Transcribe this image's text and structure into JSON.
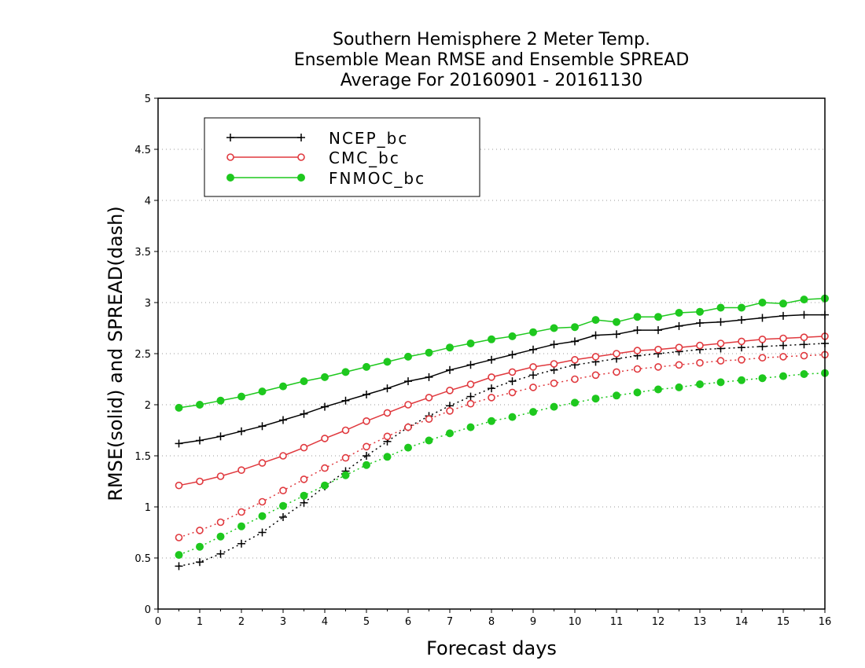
{
  "chart_data": {
    "type": "line",
    "title_lines": [
      "Southern Hemisphere 2 Meter Temp.",
      "Ensemble Mean RMSE and Ensemble SPREAD",
      "Average For 20160901 - 20161130"
    ],
    "xlabel": "Forecast days",
    "ylabel": "RMSE(solid) and SPREAD(dash)",
    "xlim": [
      0,
      16
    ],
    "ylim": [
      0,
      5
    ],
    "xticks": [
      "0",
      "1",
      "2",
      "3",
      "4",
      "5",
      "6",
      "7",
      "8",
      "9",
      "10",
      "11",
      "12",
      "13",
      "14",
      "15",
      "16"
    ],
    "yticks": [
      "0",
      "0.5",
      "1",
      "1.5",
      "2",
      "2.5",
      "3",
      "3.5",
      "4",
      "4.5",
      "5"
    ],
    "grid": "horizontal dotted",
    "legend_position": "top-left",
    "x": [
      0.5,
      1,
      1.5,
      2,
      2.5,
      3,
      3.5,
      4,
      4.5,
      5,
      5.5,
      6,
      6.5,
      7,
      7.5,
      8,
      8.5,
      9,
      9.5,
      10,
      10.5,
      11,
      11.5,
      12,
      12.5,
      13,
      13.5,
      14,
      14.5,
      15,
      15.5,
      16
    ],
    "series": [
      {
        "name": "NCEP_bc",
        "color": "#000000",
        "marker": "plus",
        "rmse": [
          1.62,
          1.65,
          1.69,
          1.74,
          1.79,
          1.85,
          1.91,
          1.98,
          2.04,
          2.1,
          2.16,
          2.23,
          2.27,
          2.34,
          2.39,
          2.44,
          2.49,
          2.54,
          2.59,
          2.62,
          2.68,
          2.69,
          2.73,
          2.73,
          2.77,
          2.8,
          2.81,
          2.83,
          2.85,
          2.87,
          2.88,
          2.88
        ],
        "spread": [
          0.42,
          0.46,
          0.54,
          0.64,
          0.75,
          0.9,
          1.04,
          1.2,
          1.35,
          1.5,
          1.64,
          1.78,
          1.89,
          1.99,
          2.08,
          2.16,
          2.23,
          2.29,
          2.34,
          2.39,
          2.42,
          2.45,
          2.48,
          2.5,
          2.52,
          2.54,
          2.55,
          2.56,
          2.57,
          2.58,
          2.59,
          2.6
        ]
      },
      {
        "name": "CMC_bc",
        "color": "#e0393e",
        "marker": "open-circle",
        "rmse": [
          1.21,
          1.25,
          1.3,
          1.36,
          1.43,
          1.5,
          1.58,
          1.67,
          1.75,
          1.84,
          1.92,
          2.0,
          2.07,
          2.14,
          2.2,
          2.27,
          2.32,
          2.37,
          2.4,
          2.44,
          2.47,
          2.5,
          2.53,
          2.54,
          2.56,
          2.58,
          2.6,
          2.62,
          2.64,
          2.65,
          2.66,
          2.67
        ],
        "spread": [
          0.7,
          0.77,
          0.85,
          0.95,
          1.05,
          1.16,
          1.27,
          1.38,
          1.48,
          1.59,
          1.69,
          1.78,
          1.86,
          1.94,
          2.01,
          2.07,
          2.12,
          2.17,
          2.21,
          2.25,
          2.29,
          2.32,
          2.35,
          2.37,
          2.39,
          2.41,
          2.43,
          2.44,
          2.46,
          2.47,
          2.48,
          2.49
        ]
      },
      {
        "name": "FNMOC_bc",
        "color": "#1ec81e",
        "marker": "filled-circle",
        "rmse": [
          1.97,
          2.0,
          2.04,
          2.08,
          2.13,
          2.18,
          2.23,
          2.27,
          2.32,
          2.37,
          2.42,
          2.47,
          2.51,
          2.56,
          2.6,
          2.64,
          2.67,
          2.71,
          2.75,
          2.76,
          2.83,
          2.81,
          2.86,
          2.86,
          2.9,
          2.91,
          2.95,
          2.95,
          3.0,
          2.99,
          3.03,
          3.04
        ],
        "spread": [
          0.53,
          0.61,
          0.71,
          0.81,
          0.91,
          1.01,
          1.11,
          1.21,
          1.31,
          1.41,
          1.49,
          1.58,
          1.65,
          1.72,
          1.78,
          1.84,
          1.88,
          1.93,
          1.98,
          2.02,
          2.06,
          2.09,
          2.12,
          2.15,
          2.17,
          2.2,
          2.22,
          2.24,
          2.26,
          2.28,
          2.3,
          2.31
        ]
      }
    ]
  }
}
